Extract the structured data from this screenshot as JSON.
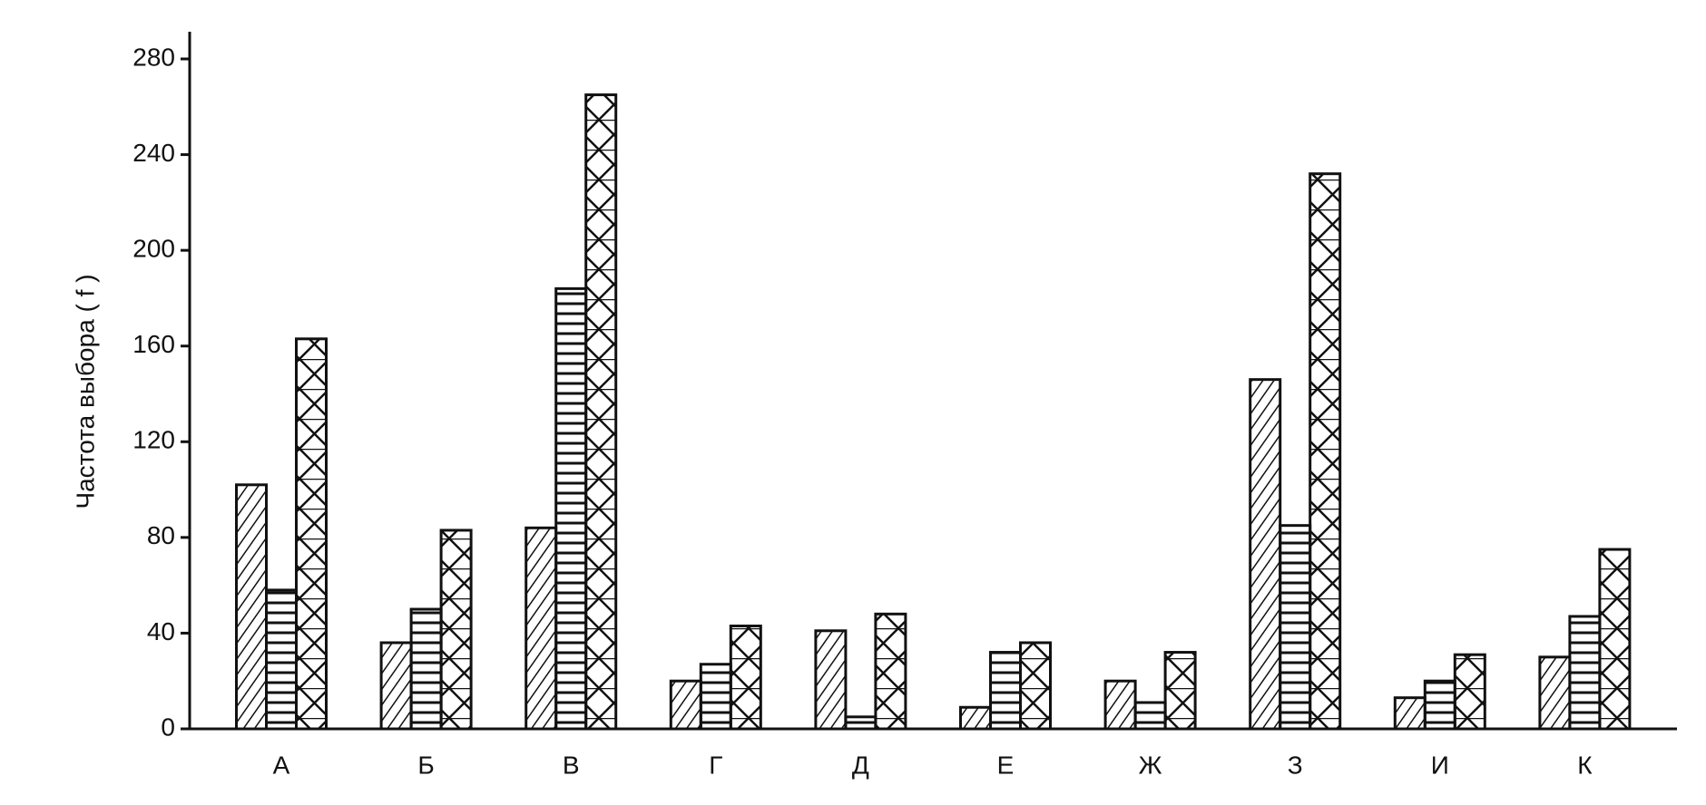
{
  "chart_data": {
    "type": "bar",
    "y_label": "Частота выбора ( f )",
    "categories": [
      "А",
      "Б",
      "В",
      "Г",
      "Д",
      "Е",
      "Ж",
      "З",
      "И",
      "К"
    ],
    "series": [
      {
        "pattern": "diagonal",
        "color": "#111111",
        "values": [
          102,
          36,
          84,
          20,
          41,
          9,
          20,
          146,
          13,
          30
        ]
      },
      {
        "pattern": "horizontal",
        "color": "#111111",
        "values": [
          58,
          50,
          184,
          27,
          5,
          32,
          11,
          85,
          20,
          47
        ]
      },
      {
        "pattern": "cross",
        "color": "#111111",
        "values": [
          163,
          83,
          265,
          43,
          48,
          36,
          32,
          232,
          31,
          75
        ]
      }
    ],
    "ylim": [
      0,
      280
    ],
    "yticks": [
      0,
      40,
      80,
      120,
      160,
      200,
      240,
      280
    ],
    "grid": false
  }
}
